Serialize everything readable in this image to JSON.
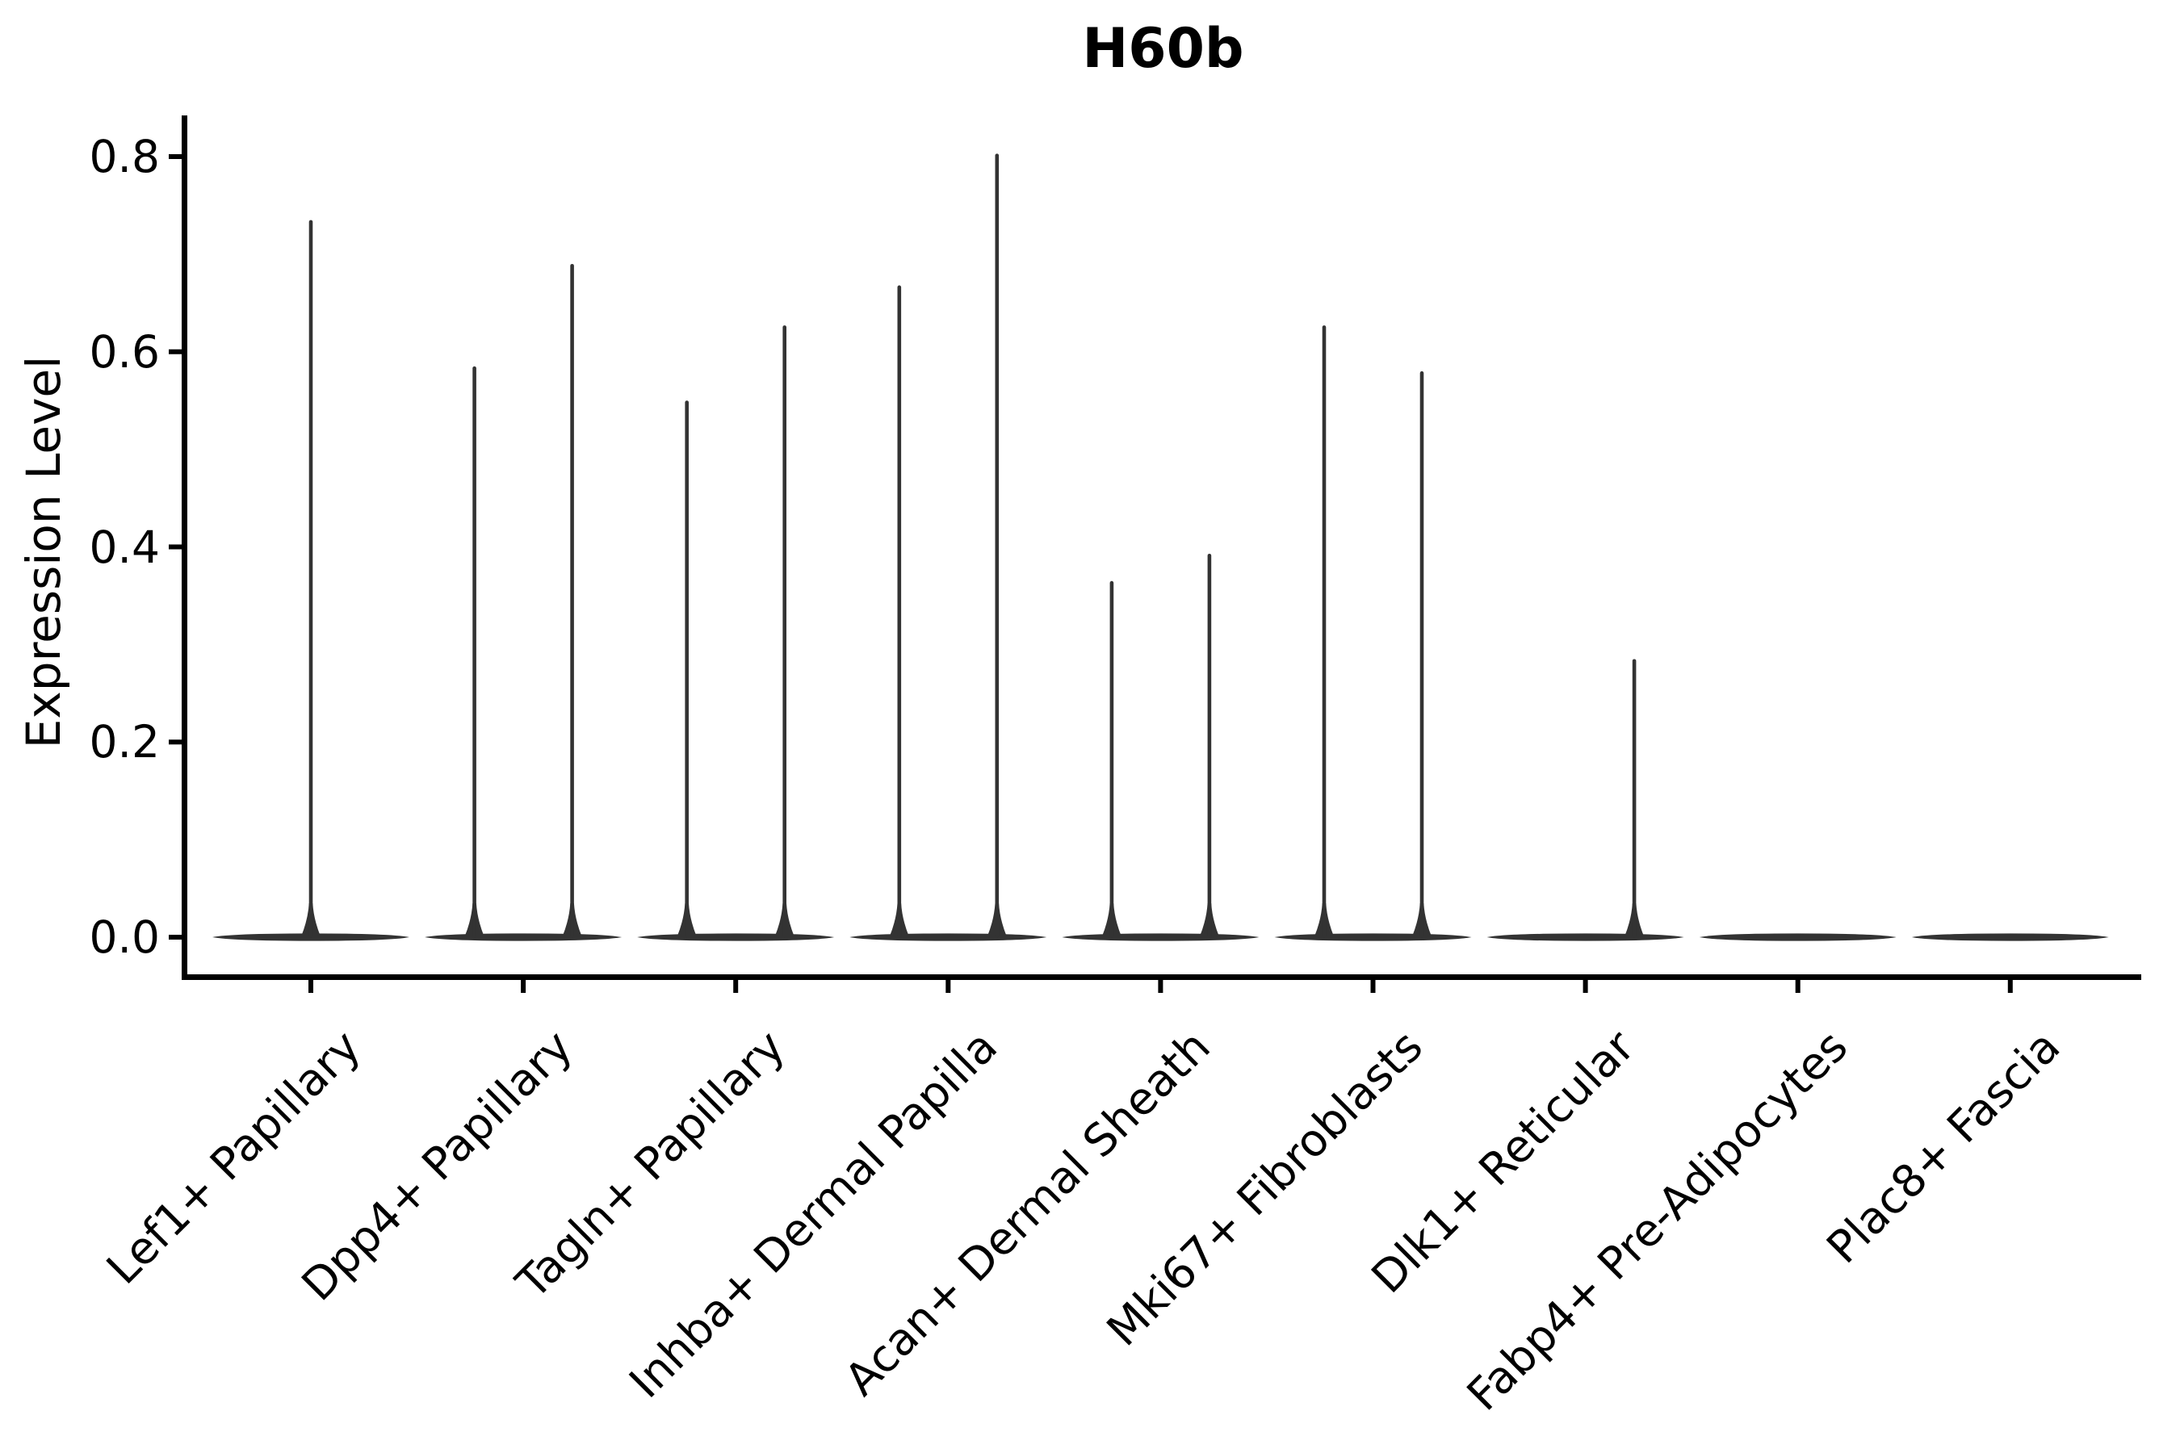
{
  "figure": {
    "title": "H60b",
    "ylabel": "Expression Level",
    "xlabel": ""
  },
  "chart_data": {
    "type": "violin",
    "title": "H60b",
    "ylabel": "Expression Level",
    "xlabel": "",
    "grid": false,
    "legend": "none",
    "spines": [
      "left",
      "bottom"
    ],
    "ylim": [
      -0.03,
      0.86
    ],
    "ytick_labels": [
      "0.0",
      "0.2",
      "0.4",
      "0.6",
      "0.8"
    ],
    "ytick_values": [
      0.0,
      0.2,
      0.4,
      0.6,
      0.8
    ],
    "categories": [
      "Lef1+ Papillary",
      "Dpp4+ Papillary",
      "Tagln+ Papillary",
      "Inhba+ Dermal Papilla",
      "Acan+ Dermal Sheath",
      "Mki67+ Fibroblasts",
      "Dlk1+ Reticular",
      "Fabp4+ Pre-Adipocytes",
      "Plac8+ Fascia"
    ],
    "series": [
      {
        "category": "Lef1+ Papillary",
        "violins": [
          {
            "position": "center",
            "max": 0.735
          }
        ]
      },
      {
        "category": "Dpp4+ Papillary",
        "violins": [
          {
            "position": "left",
            "max": 0.585
          },
          {
            "position": "right",
            "max": 0.69
          }
        ]
      },
      {
        "category": "Tagln+ Papillary",
        "violins": [
          {
            "position": "left",
            "max": 0.55
          },
          {
            "position": "right",
            "max": 0.627
          }
        ]
      },
      {
        "category": "Inhba+ Dermal Papilla",
        "violins": [
          {
            "position": "left",
            "max": 0.668
          },
          {
            "position": "right",
            "max": 0.803
          }
        ]
      },
      {
        "category": "Acan+ Dermal Sheath",
        "violins": [
          {
            "position": "left",
            "max": 0.365
          },
          {
            "position": "right",
            "max": 0.393
          }
        ]
      },
      {
        "category": "Mki67+ Fibroblasts",
        "violins": [
          {
            "position": "left",
            "max": 0.627
          },
          {
            "position": "right",
            "max": 0.58
          }
        ]
      },
      {
        "category": "Dlk1+ Reticular",
        "violins": [
          {
            "position": "right",
            "max": 0.285
          }
        ]
      },
      {
        "category": "Fabp4+ Pre-Adipocytes",
        "violins": []
      },
      {
        "category": "Plac8+ Fascia",
        "violins": []
      }
    ],
    "colors": {
      "violin": "#333333",
      "axis": "#000000",
      "text": "#000000",
      "background": "#ffffff"
    }
  }
}
